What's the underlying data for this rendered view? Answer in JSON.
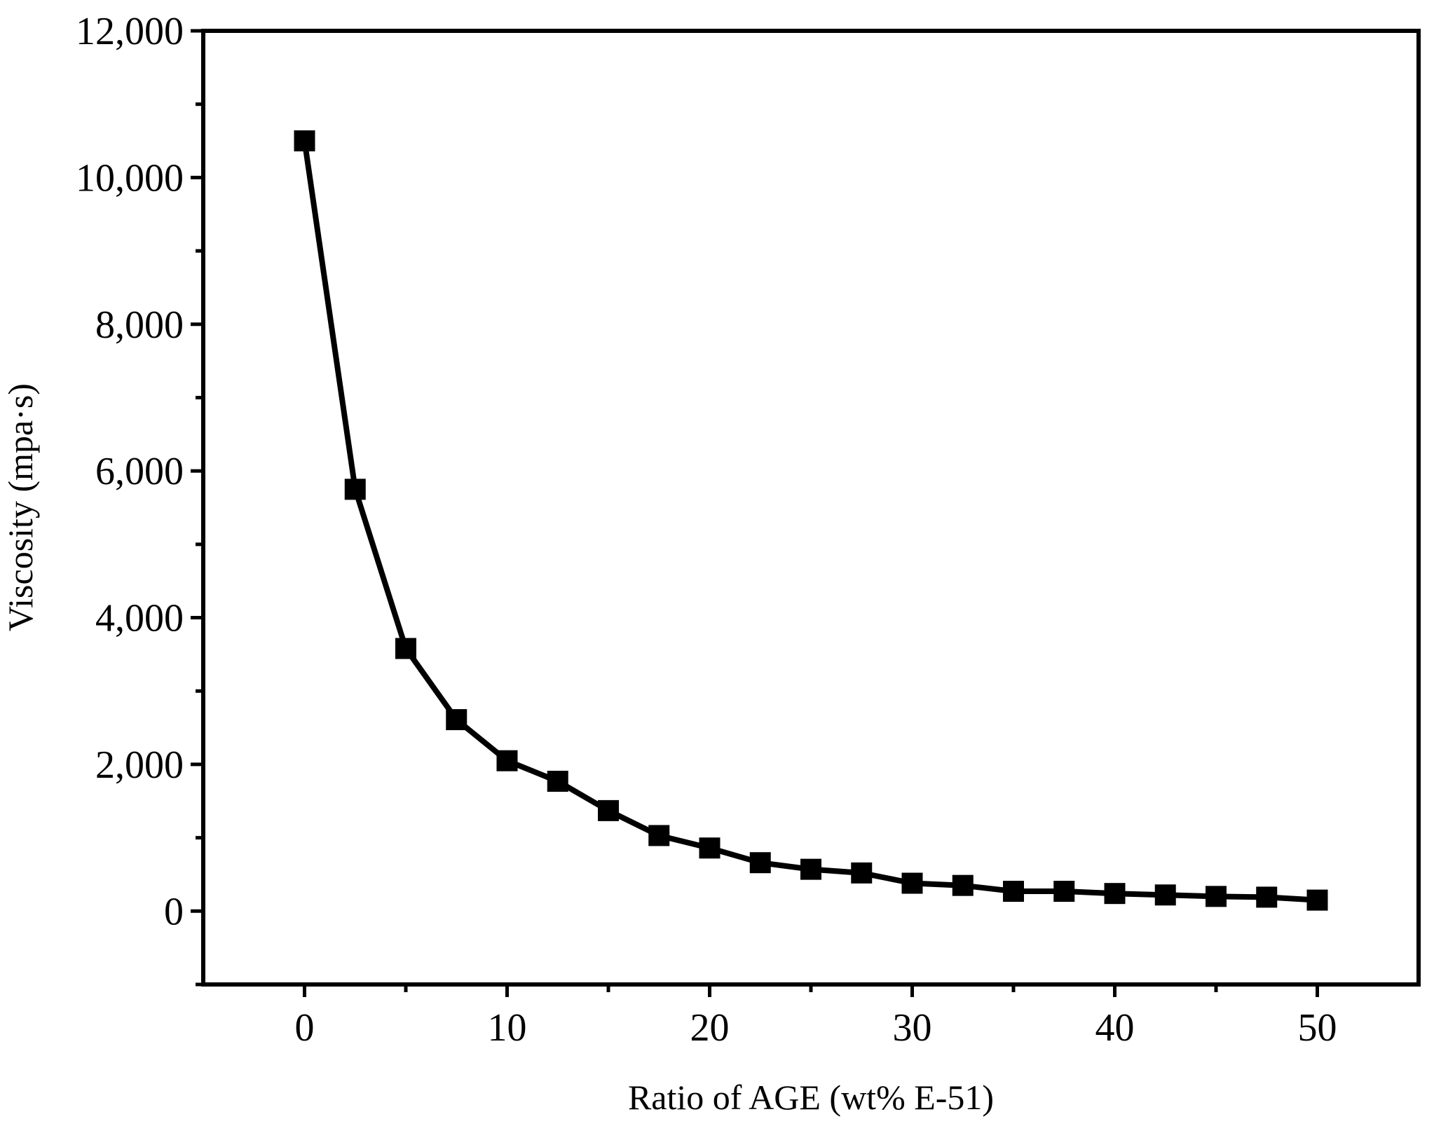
{
  "chart_data": {
    "type": "line",
    "xlabel": "Ratio of AGE (wt% E-51)",
    "ylabel": "Viscosity (mpa·s)",
    "xlim": [
      -5,
      55
    ],
    "ylim": [
      -1000,
      12000
    ],
    "x_ticks": [
      0,
      10,
      20,
      30,
      40,
      50
    ],
    "y_ticks": [
      0,
      2000,
      4000,
      6000,
      8000,
      10000,
      12000
    ],
    "x_tick_labels": [
      "0",
      "10",
      "20",
      "30",
      "40",
      "50"
    ],
    "y_tick_labels": [
      "0",
      "2,000",
      "4,000",
      "6,000",
      "8,000",
      "10,000",
      "12,000"
    ],
    "grid": false,
    "marker": "square",
    "line_color": "#000000",
    "series": [
      {
        "x": [
          0,
          2.5,
          5,
          7.5,
          10,
          12.5,
          15,
          17.5,
          20,
          22.5,
          25,
          27.5,
          30,
          32.5,
          35,
          37.5,
          40,
          42.5,
          45,
          47.5,
          50
        ],
        "values": [
          10500,
          5750,
          3580,
          2610,
          2050,
          1770,
          1370,
          1030,
          860,
          660,
          570,
          520,
          380,
          350,
          270,
          270,
          240,
          220,
          200,
          190,
          150
        ]
      }
    ]
  }
}
